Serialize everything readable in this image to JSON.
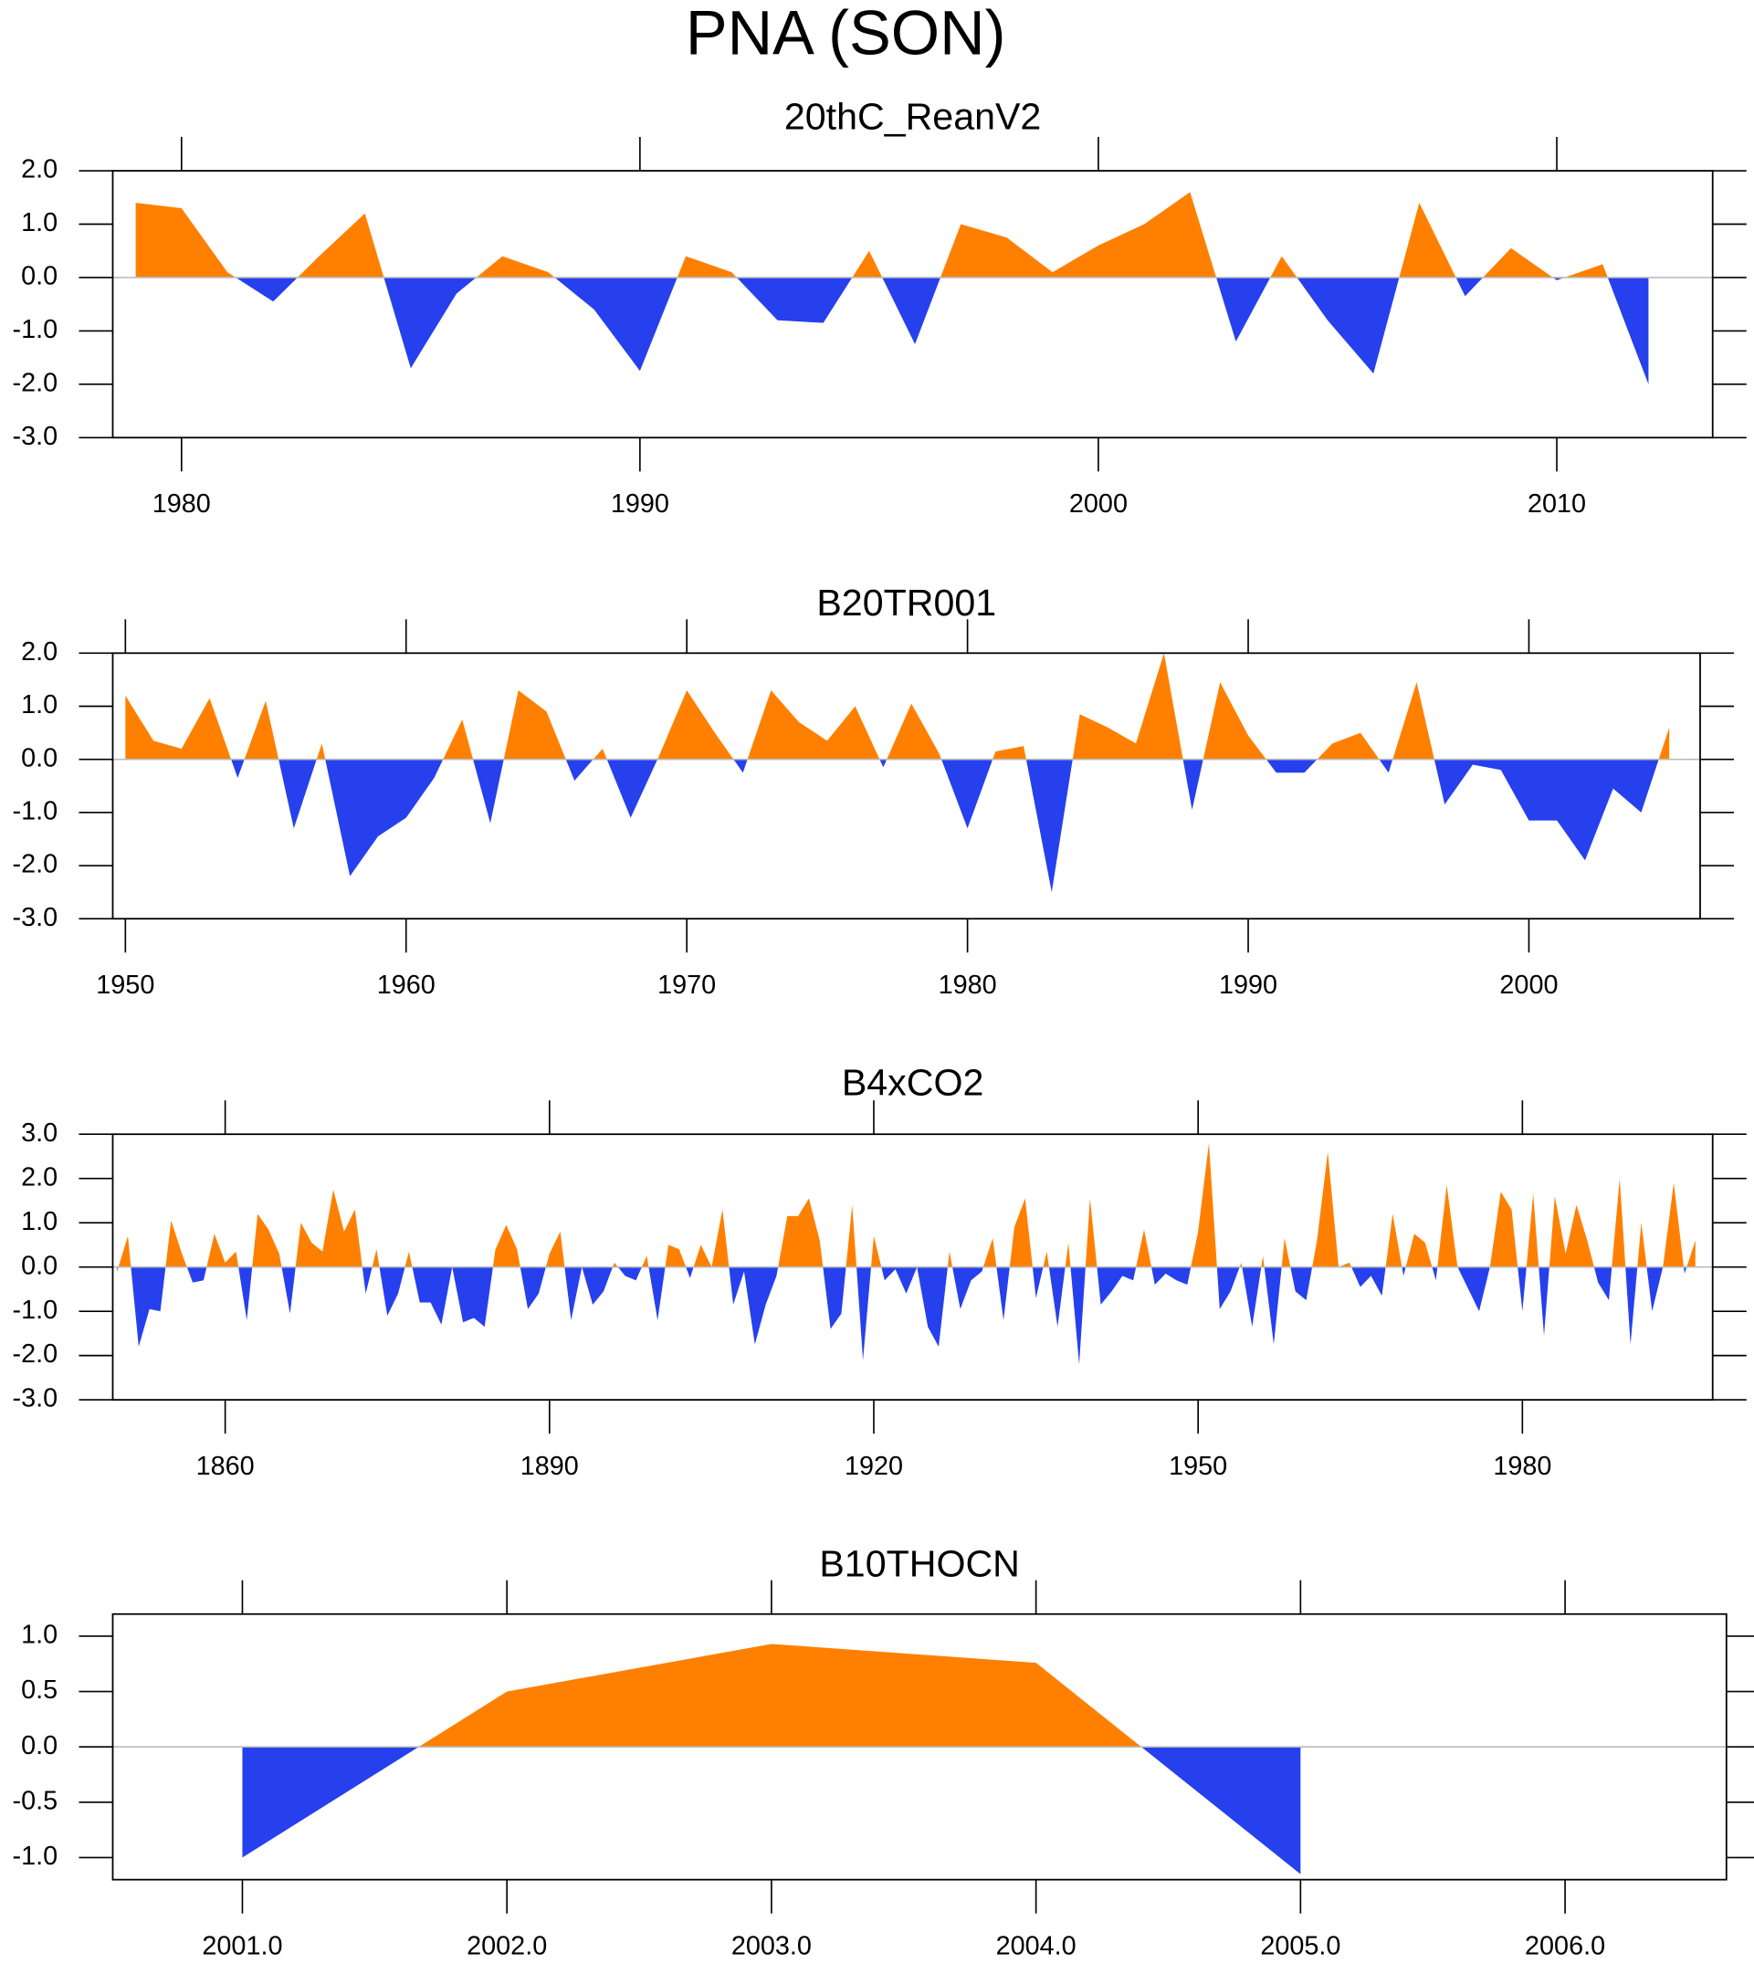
{
  "title": "PNA (SON)",
  "chart_data": [
    {
      "type": "area",
      "title": "20thC_ReanV2",
      "above_color": "#ff8000",
      "below_color": "#2640ee",
      "zero_line_color": "#bbbbbb",
      "x": [
        1979,
        1980,
        1981,
        1982,
        1983,
        1984,
        1985,
        1986,
        1987,
        1988,
        1989,
        1990,
        1991,
        1992,
        1993,
        1994,
        1995,
        1996,
        1997,
        1998,
        1999,
        2000,
        2001,
        2002,
        2003,
        2004,
        2005,
        2006,
        2007,
        2008,
        2009,
        2010,
        2011,
        2012
      ],
      "values": [
        1.4,
        1.3,
        0.1,
        -0.45,
        0.4,
        1.2,
        -1.7,
        -0.3,
        0.4,
        0.1,
        -0.6,
        -1.75,
        0.4,
        0.1,
        -0.8,
        -0.85,
        0.5,
        -1.25,
        1.0,
        0.75,
        0.1,
        0.6,
        1.0,
        1.6,
        -1.2,
        0.4,
        -0.8,
        -1.8,
        1.4,
        -0.35,
        0.55,
        -0.05,
        0.25,
        -2.0
      ],
      "xlim": [
        1978.5,
        2013.4
      ],
      "xticks": [
        1980,
        1990,
        2000,
        2010
      ],
      "ylim": [
        -3,
        2
      ],
      "yticks": [
        {
          "value": -3,
          "label": "-3.0"
        },
        {
          "value": -2,
          "label": "-2.0"
        },
        {
          "value": -1,
          "label": "-1.0"
        },
        {
          "value": 0,
          "label": "0.0"
        },
        {
          "value": 1,
          "label": "1.0"
        },
        {
          "value": 2,
          "label": "2.0"
        }
      ]
    },
    {
      "type": "area",
      "title": "B20TR001",
      "above_color": "#ff8000",
      "below_color": "#2640ee",
      "zero_line_color": "#bbbbbb",
      "x": [
        1950,
        1951,
        1952,
        1953,
        1954,
        1955,
        1956,
        1957,
        1958,
        1959,
        1960,
        1961,
        1962,
        1963,
        1964,
        1965,
        1966,
        1967,
        1968,
        1969,
        1970,
        1971,
        1972,
        1973,
        1974,
        1975,
        1976,
        1977,
        1978,
        1979,
        1980,
        1981,
        1982,
        1983,
        1984,
        1985,
        1986,
        1987,
        1988,
        1989,
        1990,
        1991,
        1992,
        1993,
        1994,
        1995,
        1996,
        1997,
        1998,
        1999,
        2000,
        2001,
        2002,
        2003,
        2004,
        2005
      ],
      "values": [
        1.2,
        0.35,
        0.2,
        1.15,
        -0.35,
        1.1,
        -1.3,
        0.3,
        -2.2,
        -1.45,
        -1.1,
        -0.35,
        0.75,
        -1.2,
        1.3,
        0.9,
        -0.4,
        0.2,
        -1.1,
        0.05,
        1.3,
        0.5,
        -0.25,
        1.3,
        0.7,
        0.35,
        1.0,
        -0.15,
        1.05,
        0.1,
        -1.3,
        0.15,
        0.25,
        -2.5,
        0.85,
        0.6,
        0.3,
        2.0,
        -0.95,
        1.45,
        0.45,
        -0.25,
        -0.25,
        0.3,
        0.5,
        -0.25,
        1.45,
        -0.85,
        -0.1,
        -0.2,
        -1.15,
        -1.15,
        -1.9,
        -0.55,
        -1.0,
        0.6
      ],
      "xlim": [
        1949.55,
        2006.1
      ],
      "xticks": [
        1950,
        1960,
        1970,
        1980,
        1990,
        2000
      ],
      "ylim": [
        -3,
        2
      ],
      "yticks": [
        {
          "value": -3,
          "label": "-3.0"
        },
        {
          "value": -2,
          "label": "-2.0"
        },
        {
          "value": -1,
          "label": "-1.0"
        },
        {
          "value": 0,
          "label": "0.0"
        },
        {
          "value": 1,
          "label": "1.0"
        },
        {
          "value": 2,
          "label": "2.0"
        }
      ]
    },
    {
      "type": "area",
      "title": "B4xCO2",
      "above_color": "#ff8000",
      "below_color": "#2640ee",
      "zero_line_color": "#bbbbbb",
      "x": [
        1850,
        1851,
        1852,
        1853,
        1854,
        1855,
        1856,
        1857,
        1858,
        1859,
        1860,
        1861,
        1862,
        1863,
        1864,
        1865,
        1866,
        1867,
        1868,
        1869,
        1870,
        1871,
        1872,
        1873,
        1874,
        1875,
        1876,
        1877,
        1878,
        1879,
        1880,
        1881,
        1882,
        1883,
        1884,
        1885,
        1886,
        1887,
        1888,
        1889,
        1890,
        1891,
        1892,
        1893,
        1894,
        1895,
        1896,
        1897,
        1898,
        1899,
        1900,
        1901,
        1902,
        1903,
        1904,
        1905,
        1906,
        1907,
        1908,
        1909,
        1910,
        1911,
        1912,
        1913,
        1914,
        1915,
        1916,
        1917,
        1918,
        1919,
        1920,
        1921,
        1922,
        1923,
        1924,
        1925,
        1926,
        1927,
        1928,
        1929,
        1930,
        1931,
        1932,
        1933,
        1934,
        1935,
        1936,
        1937,
        1938,
        1939,
        1940,
        1941,
        1942,
        1943,
        1944,
        1945,
        1946,
        1947,
        1948,
        1949,
        1950,
        1951,
        1952,
        1953,
        1954,
        1955,
        1956,
        1957,
        1958,
        1959,
        1960,
        1961,
        1962,
        1963,
        1964,
        1965,
        1966,
        1967,
        1968,
        1969,
        1970,
        1971,
        1972,
        1973,
        1974,
        1975,
        1976,
        1977,
        1978,
        1979,
        1980,
        1981,
        1982,
        1983,
        1984,
        1985,
        1986,
        1987,
        1988,
        1989,
        1990,
        1991,
        1992,
        1993,
        1994,
        1995,
        1996
      ],
      "values": [
        -0.1,
        0.7,
        -1.8,
        -0.95,
        -1.0,
        1.05,
        0.3,
        -0.35,
        -0.3,
        0.75,
        0.1,
        0.35,
        -1.2,
        1.2,
        0.85,
        0.3,
        -1.05,
        1.0,
        0.55,
        0.35,
        1.75,
        0.8,
        1.3,
        -0.6,
        0.4,
        -1.1,
        -0.6,
        0.35,
        -0.8,
        -0.8,
        -1.3,
        0.0,
        -1.25,
        -1.15,
        -1.35,
        0.4,
        0.95,
        0.4,
        -0.95,
        -0.6,
        0.3,
        0.8,
        -1.2,
        0.0,
        -0.85,
        -0.55,
        0.1,
        -0.2,
        -0.3,
        0.25,
        -1.2,
        0.5,
        0.4,
        -0.25,
        0.5,
        0.0,
        1.3,
        -0.85,
        -0.1,
        -1.75,
        -0.85,
        -0.2,
        1.15,
        1.15,
        1.55,
        0.6,
        -1.4,
        -1.05,
        1.4,
        -2.1,
        0.7,
        -0.3,
        -0.05,
        -0.6,
        0.0,
        -1.35,
        -1.8,
        0.35,
        -0.95,
        -0.3,
        -0.1,
        0.65,
        -1.2,
        0.9,
        1.55,
        -0.7,
        0.35,
        -1.35,
        0.55,
        -2.2,
        1.55,
        -0.85,
        -0.55,
        -0.2,
        -0.3,
        0.85,
        -0.4,
        -0.15,
        -0.3,
        -0.4,
        0.8,
        2.8,
        -0.95,
        -0.55,
        0.1,
        -1.35,
        0.25,
        -1.75,
        0.65,
        -0.55,
        -0.75,
        0.6,
        2.6,
        0.0,
        0.1,
        -0.45,
        -0.2,
        -0.65,
        1.2,
        -0.2,
        0.75,
        0.55,
        -0.3,
        1.85,
        0.0,
        -0.5,
        -1.0,
        0.0,
        1.7,
        1.3,
        -1.0,
        1.65,
        -1.55,
        1.6,
        0.3,
        1.4,
        0.6,
        -0.35,
        -0.75,
        2.0,
        -1.75,
        1.0,
        -1.0,
        0.0,
        1.9,
        -0.15,
        0.6
      ],
      "xlim": [
        1849.6,
        1997.6
      ],
      "xticks": [
        1860,
        1890,
        1920,
        1950,
        1980
      ],
      "ylim": [
        -3,
        3
      ],
      "yticks": [
        {
          "value": -3,
          "label": "-3.0"
        },
        {
          "value": -2,
          "label": "-2.0"
        },
        {
          "value": -1,
          "label": "-1.0"
        },
        {
          "value": 0,
          "label": "0.0"
        },
        {
          "value": 1,
          "label": "1.0"
        },
        {
          "value": 2,
          "label": "2.0"
        },
        {
          "value": 3,
          "label": "3.0"
        }
      ]
    },
    {
      "type": "area",
      "title": "B10THOCN",
      "above_color": "#ff8000",
      "below_color": "#2640ee",
      "zero_line_color": "#bbbbbb",
      "x": [
        2001,
        2002,
        2003,
        2004,
        2005
      ],
      "values": [
        -1.0,
        0.5,
        0.93,
        0.76,
        -1.15
      ],
      "xlim": [
        2000.51,
        2006.61
      ],
      "xticks": [
        {
          "value": 2001,
          "label": "2001.0"
        },
        {
          "value": 2002,
          "label": "2002.0"
        },
        {
          "value": 2003,
          "label": "2003.0"
        },
        {
          "value": 2004,
          "label": "2004.0"
        },
        {
          "value": 2005,
          "label": "2005.0"
        },
        {
          "value": 2006,
          "label": "2006.0"
        }
      ],
      "ylim": [
        -1.2,
        1.2
      ],
      "yticks": [
        {
          "value": -1,
          "label": "-1.0"
        },
        {
          "value": -0.5,
          "label": "-0.5"
        },
        {
          "value": 0,
          "label": "0.0"
        },
        {
          "value": 0.5,
          "label": "0.5"
        },
        {
          "value": 1,
          "label": "1.0"
        }
      ]
    }
  ]
}
